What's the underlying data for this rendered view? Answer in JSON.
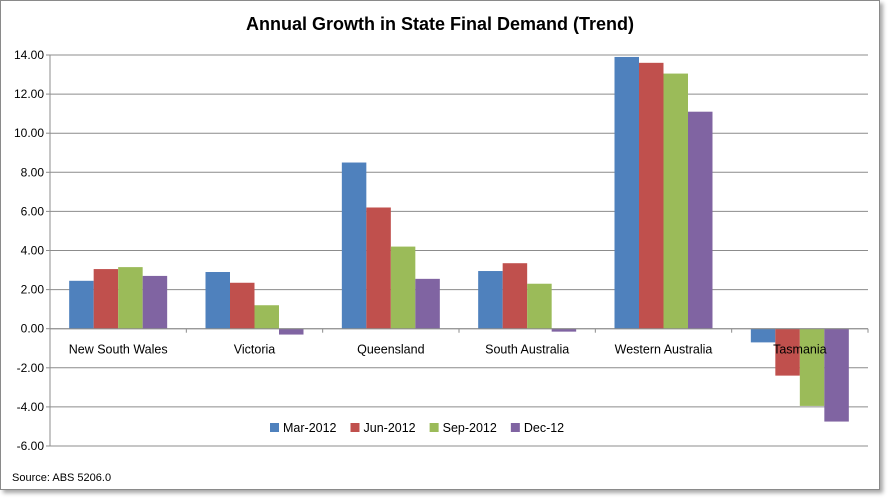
{
  "chart_data": {
    "type": "bar",
    "title": "Annual Growth in State Final Demand (Trend)",
    "xlabel": "",
    "ylabel": "",
    "ylim": [
      -6,
      14
    ],
    "yticks": [
      "14.00",
      "12.00",
      "10.00",
      "8.00",
      "6.00",
      "4.00",
      "2.00",
      "0.00",
      "-2.00",
      "-4.00",
      "-6.00"
    ],
    "ytick_values": [
      14,
      12,
      10,
      8,
      6,
      4,
      2,
      0,
      -2,
      -4,
      -6
    ],
    "grid": true,
    "legend_position": "bottom",
    "categories": [
      "New South  Wales",
      "Victoria",
      "Queensland",
      "South  Australia",
      "Western Australia",
      "Tasmania"
    ],
    "series": [
      {
        "name": "Mar-2012",
        "color": "#4F81BD",
        "values": [
          2.45,
          2.9,
          8.5,
          2.95,
          13.9,
          -0.7
        ]
      },
      {
        "name": "Jun-2012",
        "color": "#C0504D",
        "values": [
          3.05,
          2.35,
          6.2,
          3.35,
          13.6,
          -2.4
        ]
      },
      {
        "name": "Sep-2012",
        "color": "#9BBB59",
        "values": [
          3.15,
          1.2,
          4.2,
          2.3,
          13.05,
          -3.95
        ]
      },
      {
        "name": "Dec-12",
        "color": "#8064A2",
        "values": [
          2.7,
          -0.3,
          2.55,
          -0.15,
          11.1,
          -4.75
        ]
      }
    ],
    "source": "Source: ABS 5206.0"
  }
}
